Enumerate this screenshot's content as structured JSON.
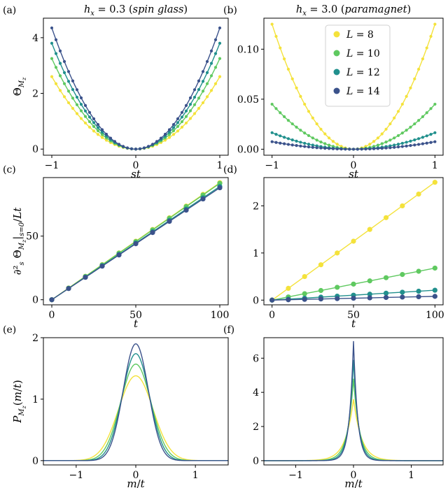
{
  "colors": {
    "L8": "#f4e23b",
    "L10": "#5fc960",
    "L12": "#21908d",
    "L14": "#3b528b"
  },
  "legend": {
    "placement": "top-right",
    "entries": [
      "L = 8",
      "L = 10",
      "L = 12",
      "L = 14"
    ]
  },
  "chart_data": [
    {
      "id": "a",
      "letter": "(a)",
      "type": "line",
      "title": "h_x = 0.3 (spin glass)",
      "xlabel": "st",
      "ylabel": "Θ_{M_z}",
      "xlim": [
        -1.1,
        1.1
      ],
      "ylim": [
        -0.22,
        4.7
      ],
      "xticks": [
        -1,
        0,
        1
      ],
      "yticks": [
        0,
        2,
        4
      ],
      "markers": true,
      "series": [
        {
          "name": "L = 8",
          "color_key": "L8",
          "coefficient": 2.6
        },
        {
          "name": "L = 10",
          "color_key": "L10",
          "coefficient": 3.25
        },
        {
          "name": "L = 12",
          "color_key": "L12",
          "coefficient": 3.8
        },
        {
          "name": "L = 14",
          "color_key": "L14",
          "coefficient": 4.35
        }
      ]
    },
    {
      "id": "b",
      "letter": "(b)",
      "type": "line",
      "title": "h_x = 3.0 (paramagnet)",
      "xlabel": "st",
      "ylabel": "",
      "xlim": [
        -1.1,
        1.1
      ],
      "ylim": [
        -0.006,
        0.131
      ],
      "xticks": [
        -1,
        0,
        1
      ],
      "yticks": [
        0.0,
        0.05,
        0.1
      ],
      "ytick_labels": [
        "0.00",
        "0.05",
        "0.10"
      ],
      "markers": true,
      "legend": true,
      "series": [
        {
          "name": "L = 8",
          "color_key": "L8",
          "coefficient": 0.125
        },
        {
          "name": "L = 10",
          "color_key": "L10",
          "coefficient": 0.045
        },
        {
          "name": "L = 12",
          "color_key": "L12",
          "coefficient": 0.0165
        },
        {
          "name": "L = 14",
          "color_key": "L14",
          "coefficient": 0.0075
        }
      ]
    },
    {
      "id": "c",
      "letter": "(c)",
      "type": "line",
      "title": "",
      "xlabel": "t",
      "ylabel": "∂²_s Θ_{M_z}|_{s=0}/Lt",
      "xlim": [
        -5,
        105
      ],
      "ylim": [
        -4,
        96
      ],
      "xticks": [
        0,
        50,
        100
      ],
      "yticks": [
        0,
        50
      ],
      "x": [
        0,
        10,
        20,
        30,
        40,
        50,
        60,
        70,
        80,
        90,
        100
      ],
      "series": [
        {
          "name": "L = 8",
          "color_key": "L8",
          "values": [
            0,
            9.2,
            18.4,
            27.6,
            36.8,
            46.0,
            55.2,
            64.4,
            73.6,
            82.8,
            92.0
          ]
        },
        {
          "name": "L = 10",
          "color_key": "L10",
          "values": [
            0,
            9.1,
            18.3,
            27.4,
            36.6,
            45.7,
            54.9,
            64.0,
            73.2,
            82.3,
            91.5
          ]
        },
        {
          "name": "L = 12",
          "color_key": "L12",
          "values": [
            0,
            8.9,
            17.8,
            26.7,
            35.6,
            44.5,
            53.4,
            62.3,
            71.2,
            80.1,
            89.0
          ]
        },
        {
          "name": "L = 14",
          "color_key": "L14",
          "values": [
            0,
            8.8,
            17.6,
            26.4,
            35.2,
            44.0,
            52.8,
            61.6,
            70.4,
            79.2,
            88.0
          ]
        }
      ]
    },
    {
      "id": "d",
      "letter": "(d)",
      "type": "line",
      "title": "",
      "xlabel": "t",
      "ylabel": "",
      "xlim": [
        -5,
        105
      ],
      "ylim": [
        -0.1,
        2.6
      ],
      "xticks": [
        0,
        50,
        100
      ],
      "yticks": [
        0,
        1,
        2
      ],
      "x": [
        0,
        10,
        20,
        30,
        40,
        50,
        60,
        70,
        80,
        90,
        100
      ],
      "series": [
        {
          "name": "L = 8",
          "color_key": "L8",
          "values": [
            0,
            0.25,
            0.5,
            0.75,
            1.0,
            1.25,
            1.5,
            1.75,
            2.0,
            2.25,
            2.5
          ]
        },
        {
          "name": "L = 10",
          "color_key": "L10",
          "values": [
            0,
            0.068,
            0.136,
            0.204,
            0.272,
            0.34,
            0.408,
            0.476,
            0.544,
            0.612,
            0.68
          ]
        },
        {
          "name": "L = 12",
          "color_key": "L12",
          "values": [
            0,
            0.021,
            0.042,
            0.063,
            0.084,
            0.105,
            0.126,
            0.147,
            0.168,
            0.189,
            0.21
          ]
        },
        {
          "name": "L = 14",
          "color_key": "L14",
          "values": [
            0,
            0.008,
            0.016,
            0.024,
            0.032,
            0.04,
            0.048,
            0.056,
            0.064,
            0.072,
            0.08
          ]
        }
      ]
    },
    {
      "id": "e",
      "letter": "(e)",
      "type": "line",
      "title": "",
      "xlabel": "m/t",
      "ylabel": "P_{M_z}(m/t)",
      "xlim": [
        -1.55,
        1.55
      ],
      "ylim": [
        -0.07,
        2.0
      ],
      "xticks": [
        -1,
        0,
        1
      ],
      "yticks": [
        0,
        1,
        2
      ],
      "curve": "gaussian",
      "series": [
        {
          "name": "L = 8",
          "color_key": "L8",
          "peak": 1.38
        },
        {
          "name": "L = 10",
          "color_key": "L10",
          "peak": 1.57
        },
        {
          "name": "L = 12",
          "color_key": "L12",
          "peak": 1.74
        },
        {
          "name": "L = 14",
          "color_key": "L14",
          "peak": 1.9
        }
      ]
    },
    {
      "id": "f",
      "letter": "(f)",
      "type": "line",
      "title": "",
      "xlabel": "m/t",
      "ylabel": "",
      "xlim": [
        -1.55,
        1.55
      ],
      "ylim": [
        -0.25,
        7.2
      ],
      "xticks": [
        -1,
        0,
        1
      ],
      "yticks": [
        0,
        2,
        4,
        6
      ],
      "curve": "cusp",
      "series": [
        {
          "name": "L = 8",
          "color_key": "L8",
          "peak": 3.6
        },
        {
          "name": "L = 10",
          "color_key": "L10",
          "peak": 4.8
        },
        {
          "name": "L = 12",
          "color_key": "L12",
          "peak": 5.9
        },
        {
          "name": "L = 14",
          "color_key": "L14",
          "peak": 7.0
        }
      ]
    }
  ]
}
